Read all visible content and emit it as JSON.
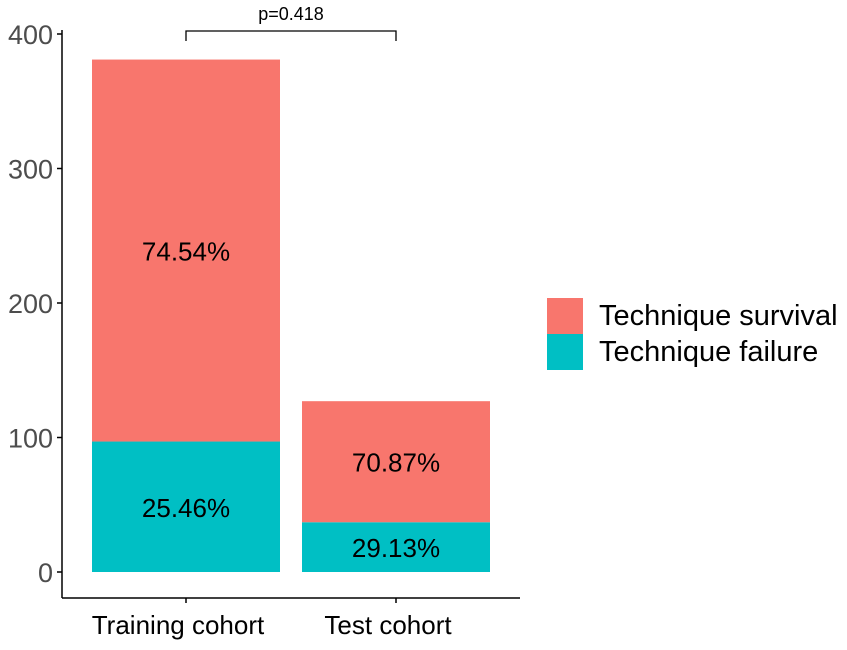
{
  "chart_data": {
    "type": "bar",
    "stacked": true,
    "title": "",
    "xlabel": "",
    "ylabel": "",
    "categories": [
      "Training cohort",
      "Test cohort"
    ],
    "series": [
      {
        "name": "Technique failure",
        "values": [
          97,
          37
        ],
        "labels": [
          "25.46%",
          "29.13%"
        ]
      },
      {
        "name": "Technique survival",
        "values": [
          284,
          90
        ],
        "labels": [
          "74.54%",
          "70.87%"
        ]
      }
    ],
    "totals": [
      381,
      127
    ],
    "ylim": [
      0,
      400
    ],
    "yticks": [
      0,
      100,
      200,
      300,
      400
    ],
    "grid": false,
    "legend": {
      "position": "right",
      "items": [
        {
          "label": "Technique survival",
          "color": "#F8766D"
        },
        {
          "label": "Technique failure",
          "color": "#00BFC4"
        }
      ]
    },
    "annotation": {
      "text": "p=0.418",
      "type": "bracket",
      "between": [
        "Training cohort",
        "Test cohort"
      ]
    },
    "colors": {
      "Technique survival": "#F8766D",
      "Technique failure": "#00BFC4"
    }
  }
}
